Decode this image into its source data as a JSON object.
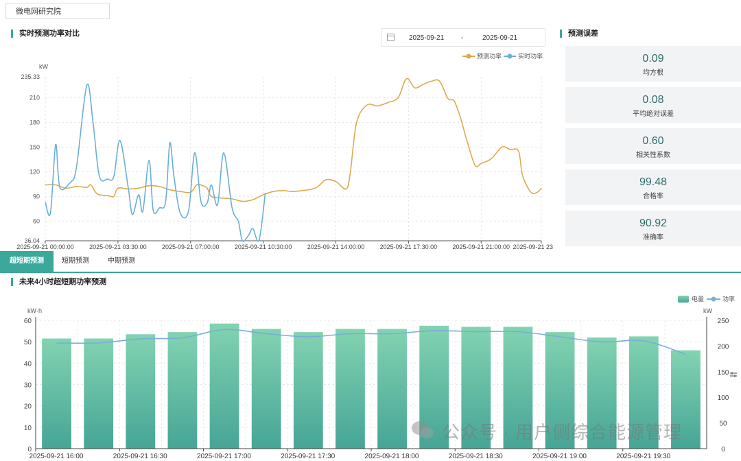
{
  "station": "微电网研究院",
  "top_panel": {
    "title": "实时预测功率对比",
    "date_start": "2025-09-21",
    "date_sep": "-",
    "date_end": "2025-09-21",
    "legend_forecast": "预测功率",
    "legend_actual": "实时功率"
  },
  "error_panel": {
    "title": "预测误差",
    "metrics": [
      {
        "value": "0.09",
        "label": "均方根"
      },
      {
        "value": "0.08",
        "label": "平均绝对误差"
      },
      {
        "value": "0.60",
        "label": "相关性系数"
      },
      {
        "value": "99.48",
        "label": "合格率"
      },
      {
        "value": "90.92",
        "label": "准确率"
      }
    ]
  },
  "tabs": [
    "超短期预测",
    "短期预测",
    "中期预测"
  ],
  "bottom_panel": {
    "title": "未来4小时超短期功率预测",
    "legend_energy": "电量",
    "legend_power": "功率"
  },
  "watermark": "公众号 · 用户侧综合能源管理",
  "colors": {
    "accent": "#3aa89a",
    "forecast": "#e0a84e",
    "actual": "#6aafd8",
    "bar_top": "#7fd1b0",
    "bar_bottom": "#4aa89a"
  },
  "chart_data": [
    {
      "type": "line",
      "ylabel": "kW",
      "ylim": [
        36.04,
        235.33
      ],
      "yticks": [
        "235.33",
        "210",
        "180",
        "150",
        "120",
        "90",
        "60",
        "36.04"
      ],
      "xticks": [
        "2025-09-21 00:00:00",
        "2025-09-21 03:30:00",
        "2025-09-21 07:00:00",
        "2025-09-21 10:30:00",
        "2025-09-21 14:00:00",
        "2025-09-21 17:30:00",
        "2025-09-21 21:00:00",
        "2025-09-21 23"
      ],
      "x_range_hours": [
        0,
        23.9
      ],
      "grid": true,
      "legend": "top-right",
      "series": [
        {
          "name": "预测功率",
          "color": "#e0a84e",
          "points": [
            [
              0,
              104
            ],
            [
              0.5,
              104
            ],
            [
              1,
              100
            ],
            [
              1.5,
              102
            ],
            [
              2,
              101
            ],
            [
              2.2,
              104
            ],
            [
              2.5,
              93
            ],
            [
              3,
              91
            ],
            [
              3.3,
              90
            ],
            [
              3.5,
              100
            ],
            [
              4,
              99
            ],
            [
              4.5,
              100
            ],
            [
              5,
              103
            ],
            [
              5.5,
              102
            ],
            [
              6,
              98
            ],
            [
              6.5,
              96
            ],
            [
              7,
              95
            ],
            [
              7.3,
              104
            ],
            [
              7.6,
              103
            ],
            [
              7.8,
              100
            ],
            [
              8,
              90
            ],
            [
              8.5,
              88
            ],
            [
              9,
              87
            ],
            [
              9.5,
              84
            ],
            [
              10,
              86
            ],
            [
              10.5,
              92
            ],
            [
              11,
              96
            ],
            [
              11.5,
              97
            ],
            [
              12,
              96
            ],
            [
              13,
              100
            ],
            [
              13.5,
              110
            ],
            [
              14,
              108
            ],
            [
              14.5,
              99
            ],
            [
              14.7,
              120
            ],
            [
              15,
              180
            ],
            [
              15.5,
              201
            ],
            [
              16,
              200
            ],
            [
              16.5,
              204
            ],
            [
              17,
              210
            ],
            [
              17.4,
              233
            ],
            [
              17.8,
              222
            ],
            [
              18.2,
              226
            ],
            [
              18.6,
              230
            ],
            [
              19,
              230
            ],
            [
              19.4,
              209
            ],
            [
              19.7,
              206
            ],
            [
              20,
              186
            ],
            [
              20.3,
              159
            ],
            [
              20.7,
              128
            ],
            [
              21,
              130
            ],
            [
              21.5,
              136
            ],
            [
              22,
              150
            ],
            [
              22.4,
              147
            ],
            [
              22.8,
              145
            ],
            [
              23,
              115
            ],
            [
              23.4,
              95
            ],
            [
              23.7,
              95
            ],
            [
              23.9,
              100
            ]
          ]
        },
        {
          "name": "实时功率",
          "color": "#6aafd8",
          "points": [
            [
              0,
              83
            ],
            [
              0.25,
              70
            ],
            [
              0.5,
              153
            ],
            [
              0.7,
              101
            ],
            [
              1.2,
              107
            ],
            [
              1.5,
              125
            ],
            [
              2,
              225
            ],
            [
              2.3,
              180
            ],
            [
              2.6,
              115
            ],
            [
              3,
              111
            ],
            [
              3.3,
              114
            ],
            [
              3.6,
              158
            ],
            [
              4,
              100
            ],
            [
              4.2,
              68
            ],
            [
              4.5,
              92
            ],
            [
              4.7,
              72
            ],
            [
              5,
              134
            ],
            [
              5.2,
              73
            ],
            [
              5.5,
              76
            ],
            [
              5.8,
              84
            ],
            [
              6,
              155
            ],
            [
              6.2,
              114
            ],
            [
              6.5,
              70
            ],
            [
              6.9,
              72
            ],
            [
              7.2,
              143
            ],
            [
              7.5,
              84
            ],
            [
              7.8,
              82
            ],
            [
              8,
              104
            ],
            [
              8.3,
              80
            ],
            [
              8.6,
              143
            ],
            [
              9,
              76
            ],
            [
              9.3,
              60
            ],
            [
              9.5,
              36
            ],
            [
              9.8,
              43
            ],
            [
              10,
              51
            ],
            [
              10.3,
              37
            ],
            [
              10.6,
              94
            ]
          ]
        }
      ]
    },
    {
      "type": "bar",
      "ylabel": "kW·h",
      "y2label": "kW",
      "ylim": [
        0,
        60
      ],
      "y2lim": [
        0,
        250
      ],
      "yticks": [
        "60",
        "50",
        "40",
        "30",
        "20",
        "10",
        "0"
      ],
      "y2ticks": [
        "250",
        "200",
        "150",
        "100",
        "50",
        "0"
      ],
      "categories": [
        "2025-09-21 16:00",
        "2025-09-21 16:15",
        "2025-09-21 16:30",
        "2025-09-21 16:45",
        "2025-09-21 17:00",
        "2025-09-21 17:15",
        "2025-09-21 17:30",
        "2025-09-21 17:45",
        "2025-09-21 18:00",
        "2025-09-21 18:15",
        "2025-09-21 18:30",
        "2025-09-21 18:45",
        "2025-09-21 19:00",
        "2025-09-21 19:15",
        "2025-09-21 19:30",
        "2025-09-21 19:45"
      ],
      "xtick_labels": [
        "2025-09-21 16:00",
        "2025-09-21 16:30",
        "2025-09-21 17:00",
        "2025-09-21 17:30",
        "2025-09-21 18:00",
        "2025-09-21 18:30",
        "2025-09-21 19:00",
        "2025-09-21 19:30"
      ],
      "legend": "top-right",
      "series": [
        {
          "name": "电量",
          "values": [
            51.5,
            51.5,
            53.5,
            54.5,
            58.5,
            56,
            54.5,
            56,
            56,
            57.5,
            57,
            57,
            54.5,
            52,
            52.5,
            46
          ],
          "axis": "left"
        },
        {
          "name": "功率",
          "values": [
            206,
            206,
            214,
            216,
            232,
            224,
            218,
            224,
            224,
            230,
            228,
            228,
            218,
            208,
            210,
            184
          ],
          "axis": "right"
        }
      ]
    }
  ]
}
